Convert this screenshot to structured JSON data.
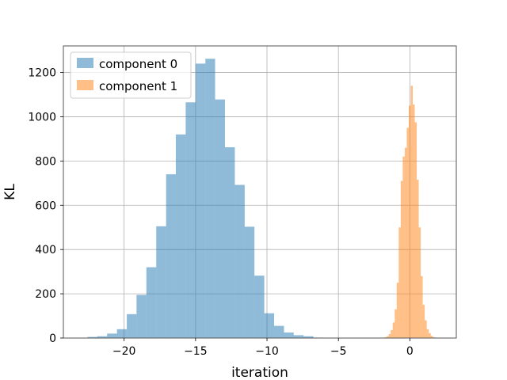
{
  "chart_data": {
    "type": "bar",
    "title": "",
    "xlabel": "iteration",
    "ylabel": "KL",
    "xlim": [
      -24.25,
      3.25
    ],
    "ylim": [
      0,
      1320
    ],
    "xticks": [
      -20,
      -15,
      -10,
      -5,
      0
    ],
    "xtick_labels": [
      "−20",
      "−15",
      "−10",
      "−5",
      "0"
    ],
    "yticks": [
      0,
      200,
      400,
      600,
      800,
      1000,
      1200
    ],
    "ytick_labels": [
      "0",
      "200",
      "400",
      "600",
      "800",
      "1000",
      "1200"
    ],
    "grid": true,
    "legend_position": "upper-left",
    "series": [
      {
        "name": "component 0",
        "color": "#1f77b4",
        "opacity": 0.5,
        "bin_edges": [
          -23.25,
          -22.56,
          -21.88,
          -21.19,
          -20.5,
          -19.81,
          -19.13,
          -18.44,
          -17.75,
          -17.06,
          -16.38,
          -15.69,
          -15.0,
          -14.31,
          -13.63,
          -12.94,
          -12.25,
          -11.56,
          -10.88,
          -10.19,
          -9.5,
          -8.81,
          -8.13,
          -7.44,
          -6.75,
          -6.06
        ],
        "counts": [
          1,
          5,
          8,
          20,
          40,
          108,
          195,
          320,
          505,
          740,
          920,
          1065,
          1240,
          1262,
          1078,
          862,
          692,
          503,
          282,
          112,
          55,
          25,
          13,
          8,
          2
        ]
      },
      {
        "name": "component 1",
        "color": "#ff7f0e",
        "opacity": 0.5,
        "bin_edges": [
          -1.9,
          -1.76,
          -1.62,
          -1.48,
          -1.34,
          -1.2,
          -1.06,
          -0.92,
          -0.78,
          -0.64,
          -0.5,
          -0.36,
          -0.22,
          -0.08,
          0.06,
          0.2,
          0.34,
          0.48,
          0.62,
          0.76,
          0.9,
          1.04,
          1.18,
          1.32,
          1.46,
          1.6,
          1.74,
          1.9
        ],
        "counts": [
          2,
          4,
          8,
          18,
          36,
          70,
          130,
          250,
          500,
          710,
          820,
          860,
          950,
          1050,
          1140,
          1055,
          975,
          715,
          500,
          280,
          150,
          80,
          40,
          22,
          10,
          4,
          2
        ]
      }
    ]
  }
}
